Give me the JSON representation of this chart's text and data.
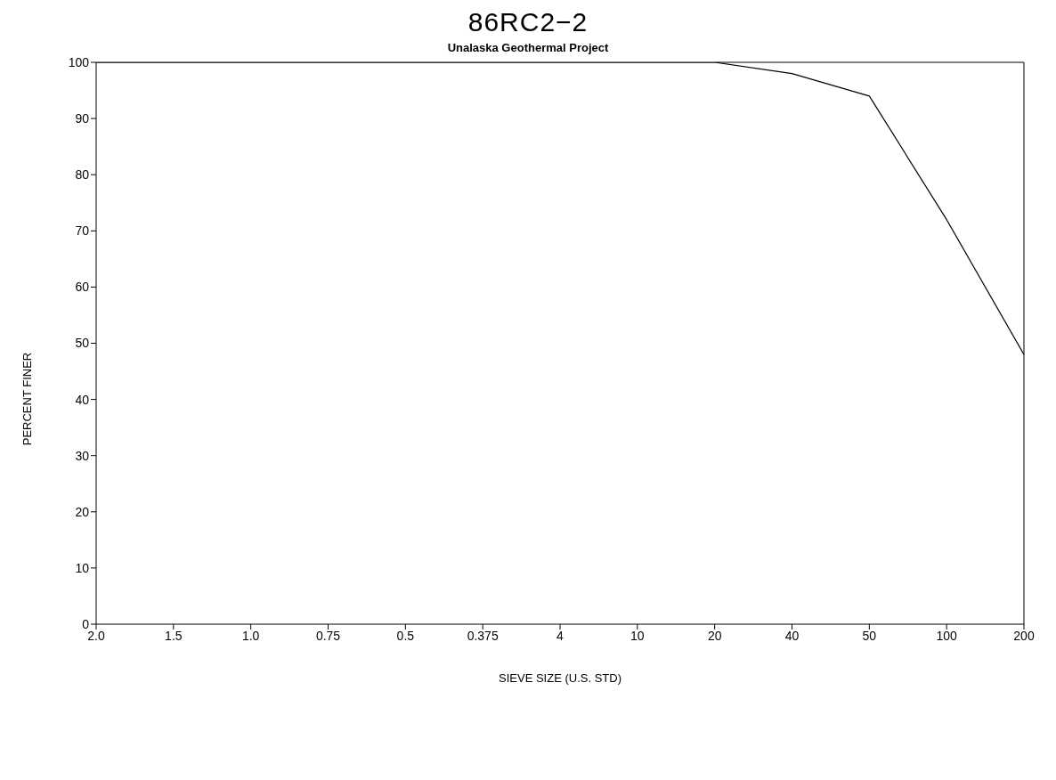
{
  "chart_data": {
    "type": "line",
    "title": "86RC2−2",
    "subtitle": "Unalaska Geothermal Project",
    "xlabel": "SIEVE SIZE (U.S. STD)",
    "ylabel": "PERCENT FINER",
    "categories": [
      "2.0",
      "1.5",
      "1.0",
      "0.75",
      "0.5",
      "0.375",
      "4",
      "10",
      "20",
      "40",
      "50",
      "100",
      "200"
    ],
    "series": [
      {
        "color": "#000000",
        "values": [
          100,
          100,
          100,
          100,
          100,
          100,
          100,
          100,
          100,
          98,
          94,
          72,
          48
        ]
      }
    ],
    "ylim": [
      0,
      100
    ],
    "yticks": [
      0,
      10,
      20,
      30,
      40,
      50,
      60,
      70,
      80,
      90,
      100
    ],
    "marker": "none",
    "line_style": "solid"
  }
}
